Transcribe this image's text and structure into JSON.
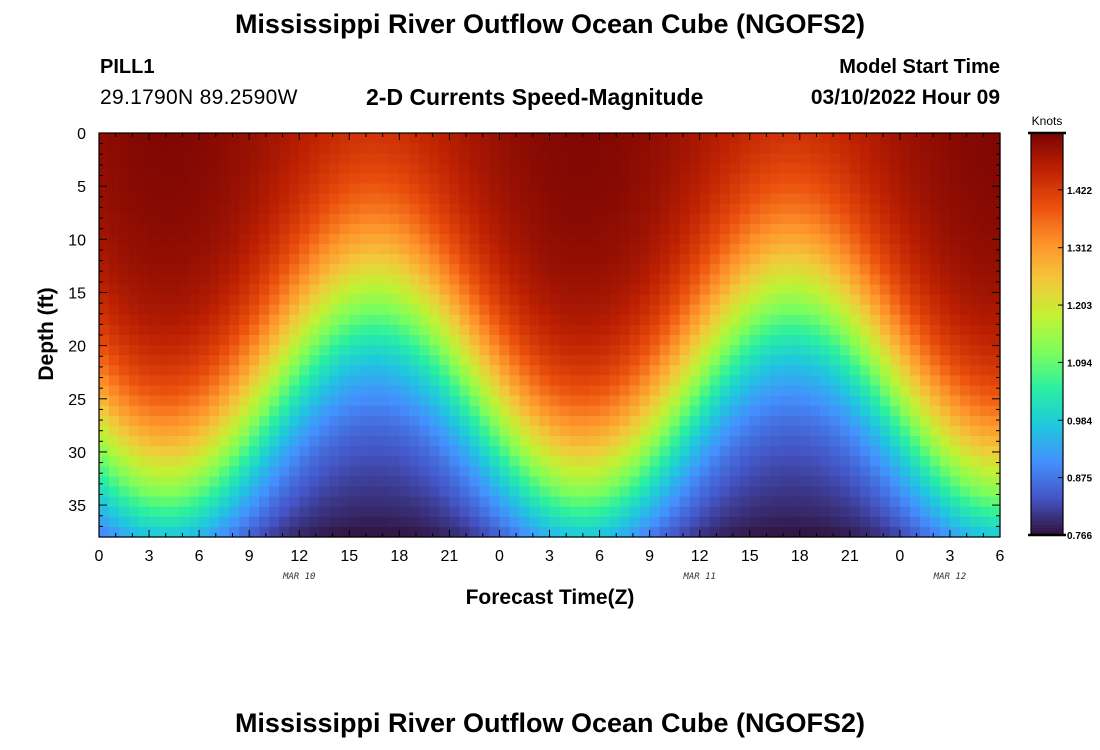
{
  "header": {
    "title": "Mississippi River Outflow Ocean Cube (NGOFS2)",
    "station_id": "PILL1",
    "station_coords": "29.1790N  89.2590W",
    "subtitle": "2-D Currents Speed-Magnitude",
    "model_start_label": "Model Start Time",
    "model_start_value": "03/10/2022 Hour 09"
  },
  "footer": {
    "title": "Mississippi River Outflow Ocean Cube (NGOFS2)"
  },
  "chart_data": {
    "type": "heatmap",
    "xlabel": "Forecast Time(Z)",
    "ylabel": "Depth (ft)",
    "x_tick_labels": [
      "0",
      "3",
      "6",
      "9",
      "12",
      "15",
      "18",
      "21",
      "0",
      "3",
      "6",
      "9",
      "12",
      "15",
      "18",
      "21",
      "0",
      "3",
      "6"
    ],
    "x_tick_hours": [
      0,
      3,
      6,
      9,
      12,
      15,
      18,
      21,
      24,
      27,
      30,
      33,
      36,
      39,
      42,
      45,
      48,
      51,
      54
    ],
    "xlim_hours": [
      0,
      54
    ],
    "date_labels": [
      {
        "label": "MAR 10",
        "hour": 12
      },
      {
        "label": "MAR 11",
        "hour": 36
      },
      {
        "label": "MAR 12",
        "hour": 51
      }
    ],
    "y_tick_labels": [
      "0",
      "5",
      "10",
      "15",
      "20",
      "25",
      "30",
      "35"
    ],
    "y_ticks": [
      0,
      5,
      10,
      15,
      20,
      25,
      30,
      35
    ],
    "ylim": [
      0,
      38
    ],
    "y_inverted": true,
    "colorbar": {
      "title": "Knots",
      "tick_labels": [
        "1.422",
        "1.312",
        "1.203",
        "1.094",
        "0.984",
        "0.875",
        "0.766"
      ],
      "ticks": [
        1.422,
        1.312,
        1.203,
        1.094,
        0.984,
        0.875,
        0.766
      ],
      "vmin": 0.766,
      "vmax": 1.53,
      "colormap": [
        "#30123b",
        "#4454c4",
        "#4490fe",
        "#1fc8de",
        "#29efa2",
        "#7cfe5c",
        "#c3f133",
        "#f4c73b",
        "#fe922a",
        "#ea4f0d",
        "#be2102",
        "#7a0403"
      ]
    },
    "field_description": {
      "surface_speed_knots": 1.51,
      "bottom_speed_knots": 0.78,
      "max_speed_hours": [
        4,
        29,
        54
      ],
      "min_speed_hours": [
        16,
        42
      ],
      "cycle_hours": 25
    }
  }
}
